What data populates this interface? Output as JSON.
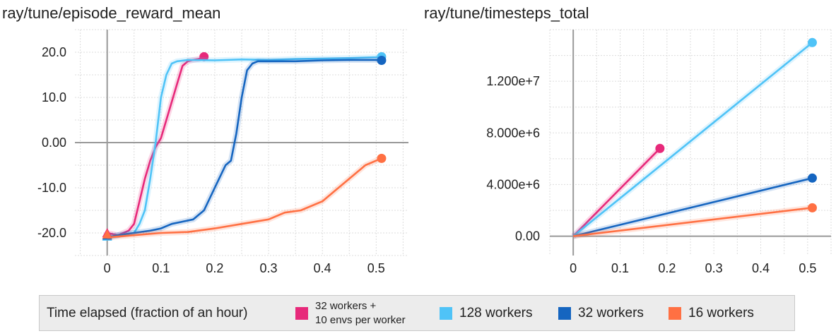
{
  "chart_data": [
    {
      "type": "line",
      "title": "ray/tune/episode_reward_mean",
      "xlabel": "Time elapsed (fraction of an hour)",
      "ylabel": "",
      "xlim": [
        -0.06,
        0.56
      ],
      "ylim": [
        -25,
        25
      ],
      "x_ticks": [
        "0",
        "0.1",
        "0.2",
        "0.3",
        "0.4",
        "0.5"
      ],
      "y_ticks": [
        "20.0",
        "10.0",
        "0.00",
        "-10.0",
        "-20.0"
      ],
      "grid": true,
      "series": [
        {
          "name": "32 workers + 10 envs per worker",
          "color": "#e7297a",
          "x": [
            0,
            0.02,
            0.04,
            0.05,
            0.06,
            0.07,
            0.08,
            0.09,
            0.1,
            0.11,
            0.12,
            0.13,
            0.14,
            0.15,
            0.16,
            0.17,
            0.18
          ],
          "y": [
            -20,
            -20.5,
            -19.5,
            -18,
            -13,
            -8,
            -4,
            -1,
            1,
            5,
            9,
            13,
            17,
            18,
            18.3,
            18.5,
            19
          ]
        },
        {
          "name": "128 workers",
          "color": "#4fc3f7",
          "x": [
            0,
            0.02,
            0.05,
            0.06,
            0.07,
            0.08,
            0.09,
            0.1,
            0.11,
            0.12,
            0.13,
            0.15,
            0.2,
            0.25,
            0.3,
            0.35,
            0.4,
            0.45,
            0.5,
            0.51
          ],
          "y": [
            -21,
            -20.5,
            -20,
            -18,
            -15,
            -8,
            0,
            10,
            15,
            17.5,
            18,
            18.3,
            18.2,
            18.4,
            18.3,
            18.5,
            18.6,
            18.7,
            18.9,
            19
          ]
        },
        {
          "name": "32 workers",
          "color": "#1565c0",
          "x": [
            0,
            0.02,
            0.05,
            0.08,
            0.1,
            0.12,
            0.14,
            0.16,
            0.18,
            0.2,
            0.22,
            0.23,
            0.24,
            0.25,
            0.26,
            0.27,
            0.28,
            0.3,
            0.35,
            0.4,
            0.45,
            0.5,
            0.51
          ],
          "y": [
            -21,
            -20.5,
            -20,
            -19.5,
            -19,
            -18,
            -17.5,
            -17,
            -15,
            -10,
            -5,
            -4,
            2,
            10,
            16,
            17.5,
            18,
            18,
            18,
            18.2,
            18.3,
            18.3,
            18.2
          ]
        },
        {
          "name": "16 workers",
          "color": "#ff7043",
          "x": [
            0,
            0.05,
            0.1,
            0.15,
            0.2,
            0.25,
            0.3,
            0.33,
            0.36,
            0.4,
            0.42,
            0.44,
            0.46,
            0.48,
            0.5,
            0.51
          ],
          "y": [
            -21,
            -20.5,
            -20,
            -19.8,
            -19,
            -18,
            -17,
            -15.5,
            -15,
            -13,
            -11,
            -9,
            -7,
            -5,
            -4,
            -3.5
          ]
        }
      ]
    },
    {
      "type": "line",
      "title": "ray/tune/timesteps_total",
      "xlabel": "Time elapsed (fraction of an hour)",
      "ylabel": "",
      "xlim": [
        -0.05,
        0.55
      ],
      "ylim": [
        -1500000,
        16000000
      ],
      "x_ticks": [
        "0",
        "0.1",
        "0.2",
        "0.3",
        "0.4",
        "0.5"
      ],
      "y_ticks": [
        "1.200e+7",
        "8.000e+6",
        "4.000e+6",
        "0.00"
      ],
      "grid": true,
      "series": [
        {
          "name": "32 workers + 10 envs per worker",
          "color": "#e7297a",
          "x": [
            0,
            0.185
          ],
          "y": [
            0,
            6800000
          ]
        },
        {
          "name": "128 workers",
          "color": "#4fc3f7",
          "x": [
            0,
            0.51
          ],
          "y": [
            0,
            15000000
          ]
        },
        {
          "name": "32 workers",
          "color": "#1565c0",
          "x": [
            0,
            0.51
          ],
          "y": [
            0,
            4500000
          ]
        },
        {
          "name": "16 workers",
          "color": "#ff7043",
          "x": [
            0,
            0.51
          ],
          "y": [
            0,
            2200000
          ]
        }
      ]
    }
  ],
  "legend": {
    "title": "Time elapsed (fraction of an hour)",
    "items": [
      {
        "label": "32 workers +\n10 envs per worker",
        "color": "#e7297a"
      },
      {
        "label": "128 workers",
        "color": "#4fc3f7"
      },
      {
        "label": "32 workers",
        "color": "#1565c0"
      },
      {
        "label": "16 workers",
        "color": "#ff7043"
      }
    ]
  }
}
